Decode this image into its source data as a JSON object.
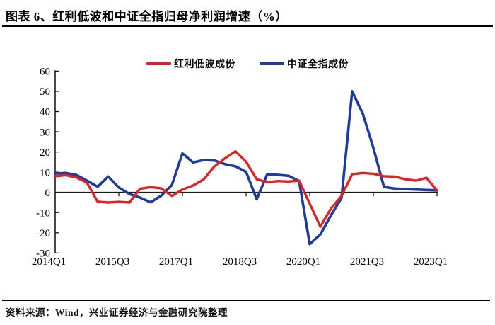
{
  "header": {
    "title": "图表 6、红利低波和中证全指归母净利润增速（%）"
  },
  "legend": [
    {
      "label": "红利低波成份",
      "color": "#e02222"
    },
    {
      "label": "中证全指成份",
      "color": "#1e3c9b"
    }
  ],
  "footer": {
    "source": "资料来源：Wind，兴业证券经济与金融研究院整理"
  },
  "colors": {
    "red_series": "#e02222",
    "blue_series": "#1e3c9b",
    "axis": "#1a1a1a",
    "text": "#000000"
  },
  "chart_data": {
    "type": "line",
    "title": "红利低波和中证全指归母净利润增速（%）",
    "xlabel": "",
    "ylabel": "",
    "ylim": [
      -30,
      60
    ],
    "grid": false,
    "legend_position": "top-center",
    "y_ticks": [
      60,
      50,
      40,
      30,
      20,
      10,
      0,
      -10,
      -20,
      -30
    ],
    "x_tick_labels": [
      "2014Q1",
      "2015Q3",
      "2017Q1",
      "2018Q3",
      "2020Q1",
      "2021Q3",
      "2023Q1"
    ],
    "x": [
      "2014Q1",
      "2014Q2",
      "2014Q3",
      "2014Q4",
      "2015Q1",
      "2015Q2",
      "2015Q3",
      "2015Q4",
      "2016Q1",
      "2016Q2",
      "2016Q3",
      "2016Q4",
      "2017Q1",
      "2017Q2",
      "2017Q3",
      "2017Q4",
      "2018Q1",
      "2018Q2",
      "2018Q3",
      "2018Q4",
      "2019Q1",
      "2019Q2",
      "2019Q3",
      "2019Q4",
      "2020Q1",
      "2020Q2",
      "2020Q3",
      "2020Q4",
      "2021Q1",
      "2021Q2",
      "2021Q3",
      "2021Q4",
      "2022Q1",
      "2022Q2",
      "2022Q3",
      "2022Q4",
      "2023Q1"
    ],
    "series": [
      {
        "name": "红利低波成份",
        "color": "#e02222",
        "values": [
          8.0,
          8.5,
          7.4,
          4.8,
          -4.6,
          -5.0,
          -4.7,
          -5.0,
          1.8,
          2.6,
          2.0,
          -1.8,
          1.4,
          3.4,
          6.4,
          12.8,
          16.8,
          20.3,
          15.2,
          6.5,
          5.0,
          5.6,
          5.4,
          5.8,
          -5.6,
          -17.0,
          -8.0,
          -1.8,
          9.0,
          9.6,
          9.2,
          8.0,
          7.8,
          6.5,
          5.8,
          7.2,
          0.9
        ]
      },
      {
        "name": "中证全指成份",
        "color": "#1e3c9b",
        "values": [
          9.3,
          9.6,
          8.6,
          5.8,
          2.8,
          7.8,
          2.4,
          -0.8,
          -2.6,
          -4.9,
          -1.6,
          3.6,
          19.3,
          14.8,
          16.0,
          15.8,
          14.0,
          12.9,
          10.2,
          -3.4,
          9.0,
          8.7,
          8.2,
          5.6,
          -25.6,
          -20.8,
          -11.4,
          -2.7,
          50.0,
          39.0,
          22.0,
          2.7,
          1.9,
          1.6,
          1.4,
          1.2,
          1.0
        ]
      }
    ]
  }
}
